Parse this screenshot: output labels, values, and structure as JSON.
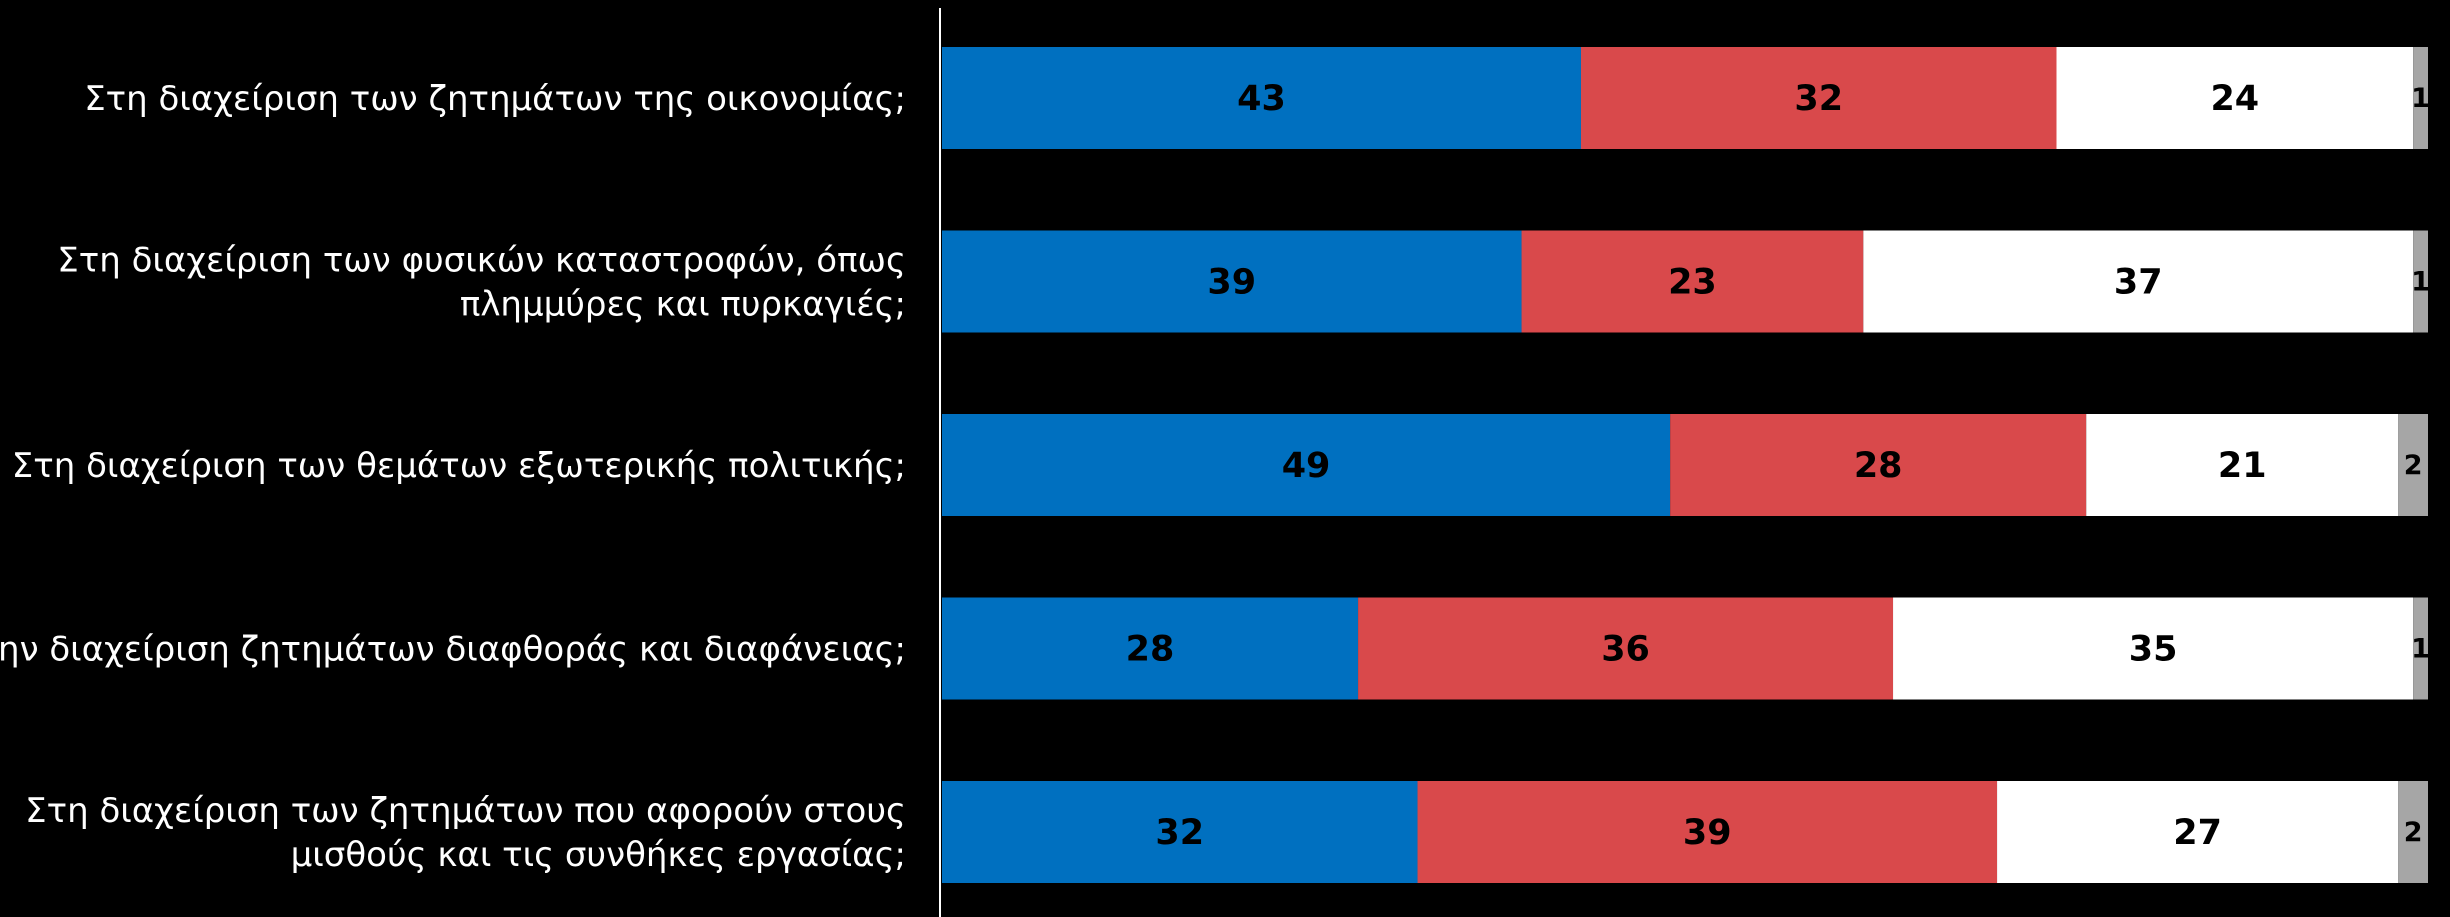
{
  "chart_data": {
    "type": "bar",
    "orientation": "horizontal",
    "stacked": true,
    "categories": [
      [
        "Στη διαχείριση των ζητημάτων της οικονομίας;"
      ],
      [
        "Στη διαχείριση των φυσικών καταστροφών, όπως",
        "πλημμύρες και πυρκαγιές;"
      ],
      [
        "Στη διαχείριση των θεμάτων εξωτερικής πολιτικής;"
      ],
      [
        "Στην διαχείριση ζητημάτων διαφθοράς και διαφάνειας;"
      ],
      [
        "Στη διαχείριση των ζητημάτων που αφορούν στους",
        "μισθούς και τις συνθήκες εργασίας;"
      ]
    ],
    "series": [
      {
        "values": [
          43,
          39,
          49,
          28,
          32
        ],
        "color": "#0070c0",
        "label_color": "#000000"
      },
      {
        "values": [
          32,
          23,
          28,
          36,
          39
        ],
        "color": "#d9494b",
        "label_color": "#000000"
      },
      {
        "values": [
          24,
          37,
          21,
          35,
          27
        ],
        "color": "#ffffff",
        "label_color": "#000000"
      },
      {
        "values": [
          1,
          1,
          2,
          1,
          2
        ],
        "color": "#a6a6a6",
        "label_color": "#000000"
      }
    ],
    "xlim": [
      0,
      100
    ],
    "grid": false,
    "legend": "none",
    "background": "#000000",
    "axis_color": "#ffffff"
  }
}
